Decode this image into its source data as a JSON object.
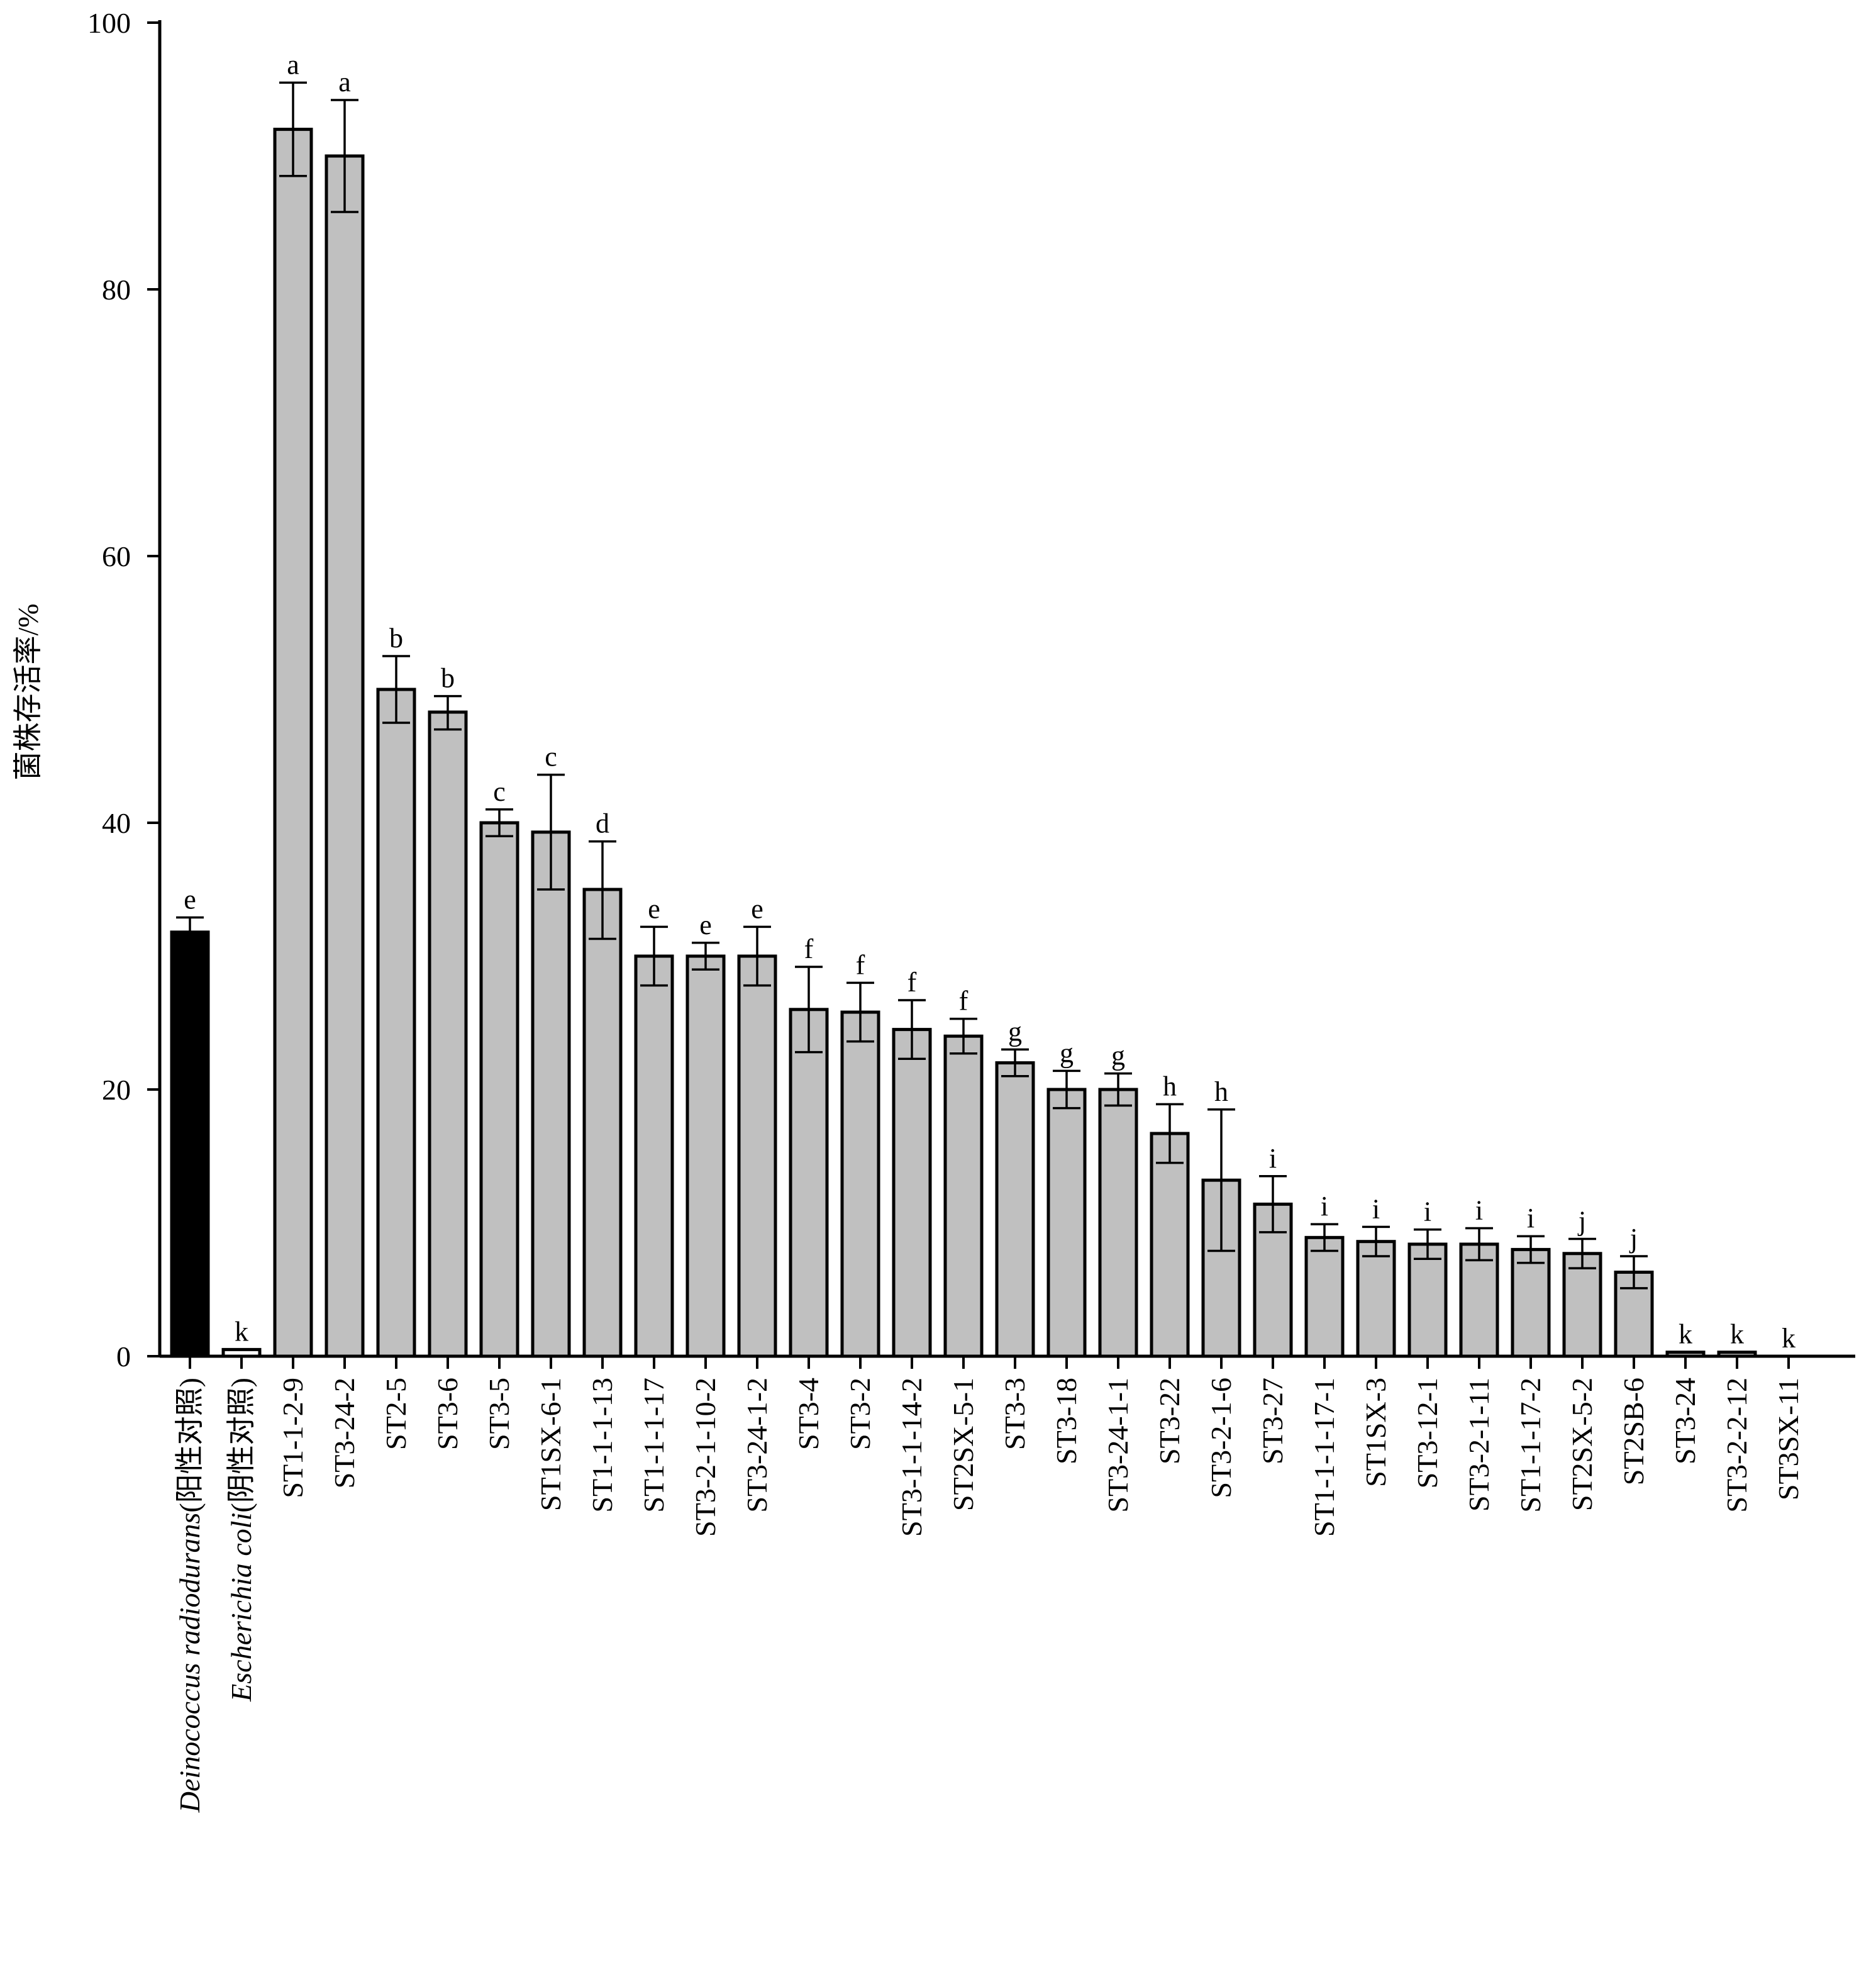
{
  "chart_data": {
    "type": "bar",
    "title": "",
    "xlabel": "",
    "ylabel": "菌株存活率/%",
    "ylim": [
      0,
      100
    ],
    "yticks": [
      "0",
      "20",
      "40",
      "60",
      "80",
      "100"
    ],
    "grid": false,
    "legend": "none",
    "colors": {
      "positive_control": "#000000",
      "negative_control": "#ffffff",
      "strain": "#c0c0c0"
    },
    "categories": [
      {
        "name": "Deinococcus radiodurans",
        "suffix": "(阳性对照)",
        "italic": true,
        "group": "positive_control"
      },
      {
        "name": "Escherichia coli",
        "suffix": "(阴性对照)",
        "italic": true,
        "group": "negative_control"
      },
      {
        "name": "ST1-1-2-9",
        "suffix": "",
        "italic": false,
        "group": "strain"
      },
      {
        "name": "ST3-24-2",
        "suffix": "",
        "italic": false,
        "group": "strain"
      },
      {
        "name": "ST2-5",
        "suffix": "",
        "italic": false,
        "group": "strain"
      },
      {
        "name": "ST3-6",
        "suffix": "",
        "italic": false,
        "group": "strain"
      },
      {
        "name": "ST3-5",
        "suffix": "",
        "italic": false,
        "group": "strain"
      },
      {
        "name": "ST1SX-6-1",
        "suffix": "",
        "italic": false,
        "group": "strain"
      },
      {
        "name": "ST1-1-1-13",
        "suffix": "",
        "italic": false,
        "group": "strain"
      },
      {
        "name": "ST1-1-1-17",
        "suffix": "",
        "italic": false,
        "group": "strain"
      },
      {
        "name": "ST3-2-1-10-2",
        "suffix": "",
        "italic": false,
        "group": "strain"
      },
      {
        "name": "ST3-24-1-2",
        "suffix": "",
        "italic": false,
        "group": "strain"
      },
      {
        "name": "ST3-4",
        "suffix": "",
        "italic": false,
        "group": "strain"
      },
      {
        "name": "ST3-2",
        "suffix": "",
        "italic": false,
        "group": "strain"
      },
      {
        "name": "ST3-1-1-14-2",
        "suffix": "",
        "italic": false,
        "group": "strain"
      },
      {
        "name": "ST2SX-5-1",
        "suffix": "",
        "italic": false,
        "group": "strain"
      },
      {
        "name": "ST3-3",
        "suffix": "",
        "italic": false,
        "group": "strain"
      },
      {
        "name": "ST3-18",
        "suffix": "",
        "italic": false,
        "group": "strain"
      },
      {
        "name": "ST3-24-1-1",
        "suffix": "",
        "italic": false,
        "group": "strain"
      },
      {
        "name": "ST3-22",
        "suffix": "",
        "italic": false,
        "group": "strain"
      },
      {
        "name": "ST3-2-1-6",
        "suffix": "",
        "italic": false,
        "group": "strain"
      },
      {
        "name": "ST3-27",
        "suffix": "",
        "italic": false,
        "group": "strain"
      },
      {
        "name": "ST1-1-1-17-1",
        "suffix": "",
        "italic": false,
        "group": "strain"
      },
      {
        "name": "ST1SX-3",
        "suffix": "",
        "italic": false,
        "group": "strain"
      },
      {
        "name": "ST3-12-1",
        "suffix": "",
        "italic": false,
        "group": "strain"
      },
      {
        "name": "ST3-2-1-11",
        "suffix": "",
        "italic": false,
        "group": "strain"
      },
      {
        "name": "ST1-1-17-2",
        "suffix": "",
        "italic": false,
        "group": "strain"
      },
      {
        "name": "ST2SX-5-2",
        "suffix": "",
        "italic": false,
        "group": "strain"
      },
      {
        "name": "ST2SB-6",
        "suffix": "",
        "italic": false,
        "group": "strain"
      },
      {
        "name": "ST3-24",
        "suffix": "",
        "italic": false,
        "group": "strain"
      },
      {
        "name": "ST3-2-2-12",
        "suffix": "",
        "italic": false,
        "group": "strain"
      },
      {
        "name": "ST3SX-11",
        "suffix": "",
        "italic": false,
        "group": "strain"
      }
    ],
    "values": [
      31.8,
      0.5,
      92.0,
      90.0,
      50.0,
      48.3,
      40.0,
      39.3,
      35.0,
      30.0,
      30.0,
      30.0,
      26.0,
      25.8,
      24.5,
      24.0,
      22.0,
      20.0,
      20.0,
      16.7,
      13.2,
      11.4,
      8.9,
      8.6,
      8.4,
      8.4,
      8.0,
      7.7,
      6.3,
      0.3,
      0.3,
      0.0
    ],
    "error_low": [
      31.8,
      0.5,
      88.5,
      85.8,
      47.5,
      47.0,
      39.0,
      35.0,
      31.3,
      27.8,
      29.0,
      27.8,
      22.8,
      23.6,
      22.3,
      22.7,
      21.0,
      18.6,
      18.8,
      14.5,
      7.9,
      9.3,
      7.9,
      7.5,
      7.3,
      7.2,
      7.0,
      6.6,
      5.1,
      0.3,
      0.3,
      0.0
    ],
    "error_high": [
      32.9,
      0.5,
      95.5,
      94.2,
      52.5,
      49.5,
      41.0,
      43.6,
      38.6,
      32.2,
      31.0,
      32.2,
      29.2,
      28.0,
      26.7,
      25.3,
      23.0,
      21.4,
      21.2,
      18.9,
      18.5,
      13.5,
      9.9,
      9.7,
      9.5,
      9.6,
      9.0,
      8.8,
      7.5,
      0.3,
      0.3,
      0.0
    ],
    "significance": [
      "e",
      "k",
      "a",
      "a",
      "b",
      "b",
      "c",
      "c",
      "d",
      "e",
      "e",
      "e",
      "f",
      "f",
      "f",
      "f",
      "g",
      "g",
      "g",
      "h",
      "h",
      "i",
      "i",
      "i",
      "i",
      "i",
      "i",
      "j",
      "j",
      "k",
      "k",
      "k"
    ]
  }
}
